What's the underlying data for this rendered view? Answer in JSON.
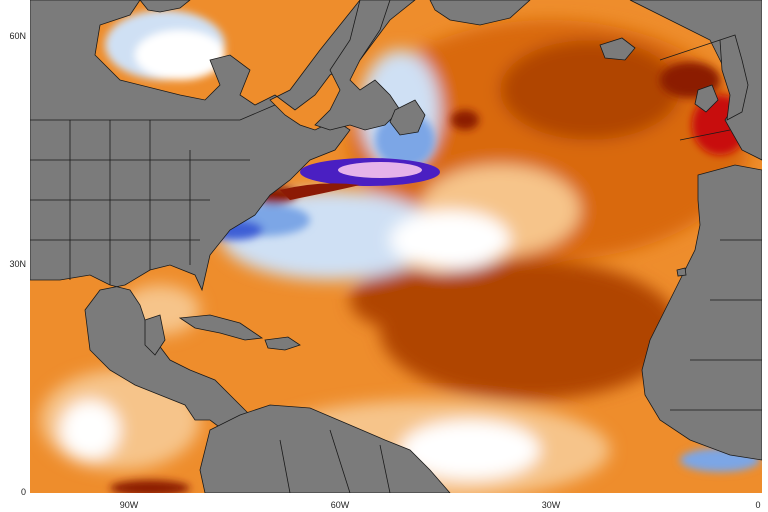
{
  "map": {
    "colors": {
      "land": "#7b7b7b",
      "border": "#1a1a1a",
      "warm_light": "#f6c48a",
      "warm": "#ee8d2c",
      "warm_strong": "#d9690f",
      "warm_dark": "#b04405",
      "hot": "#8c1a05",
      "hot_extreme": "#c80c0c",
      "neutral": "#ffffff",
      "cool_light": "#cfe0f4",
      "cool": "#7ba6e6",
      "cool_strong": "#3d5fd6",
      "cool_extreme": "#4a1fc2",
      "cold_core": "#e5b3ea"
    },
    "axes": {
      "y_ticks": [
        {
          "label": "60N",
          "lat": 60
        },
        {
          "label": "30N",
          "lat": 30
        },
        {
          "label": "0",
          "lat": 0
        }
      ],
      "x_ticks": [
        {
          "label": "90W",
          "lon": -90
        },
        {
          "label": "60W",
          "lon": -60
        },
        {
          "label": "30W",
          "lon": -30
        },
        {
          "label": "0",
          "lon": 0
        }
      ]
    }
  }
}
